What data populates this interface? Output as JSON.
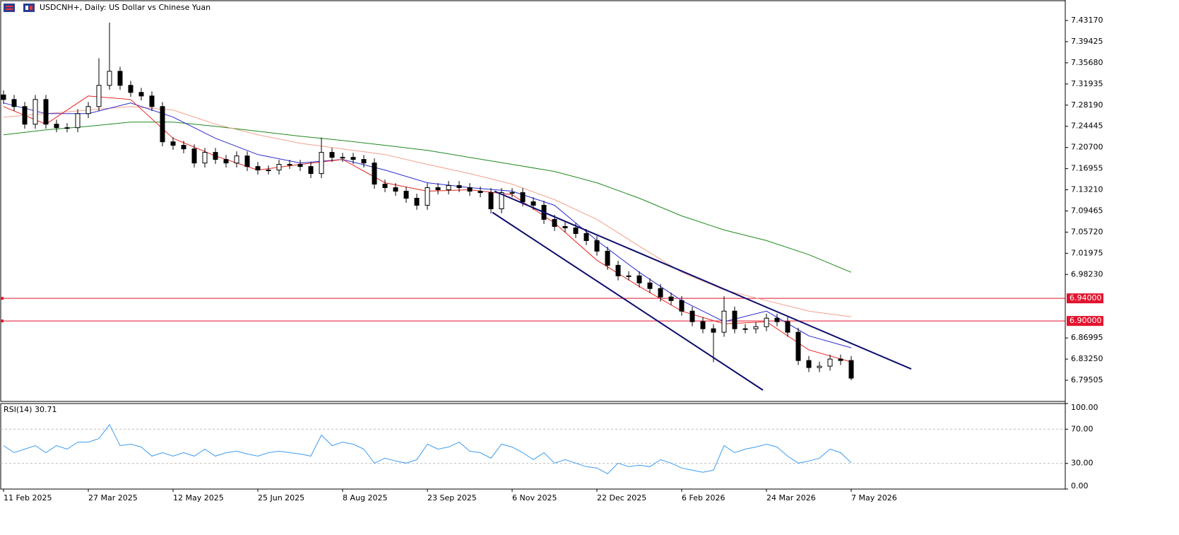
{
  "chart_data": {
    "type": "candlestick",
    "title": "USDCNH+, Daily:  US Dollar vs Chinese Yuan",
    "categories": [
      "11 Feb 2025",
      null,
      null,
      null,
      null,
      null,
      null,
      null,
      "27 Mar 2025",
      null,
      null,
      null,
      null,
      null,
      null,
      null,
      "12 May 2025",
      null,
      null,
      null,
      null,
      null,
      null,
      null,
      "25 Jun 2025",
      null,
      null,
      null,
      null,
      null,
      null,
      null,
      "8 Aug 2025",
      null,
      null,
      null,
      null,
      null,
      null,
      null,
      "23 Sep 2025",
      null,
      null,
      null,
      null,
      null,
      null,
      null,
      "6 Nov 2025",
      null,
      null,
      null,
      null,
      null,
      null,
      null,
      "22 Dec 2025",
      null,
      null,
      null,
      null,
      null,
      null,
      null,
      "6 Feb 2026",
      null,
      null,
      null,
      null,
      null,
      null,
      null,
      "24 Mar 2026",
      null,
      null,
      null,
      null,
      null,
      null,
      null,
      "7 May 2026"
    ],
    "open": [
      7.3,
      7.2919,
      7.2794,
      7.2482,
      7.2919,
      7.2482,
      7.242,
      7.242,
      7.2669,
      7.2794,
      7.3169,
      7.3418,
      7.3169,
      7.3044,
      7.2981,
      7.2794,
      7.217,
      7.2108,
      7.2045,
      7.1795,
      7.1983,
      7.1858,
      7.1795,
      7.192,
      7.1733,
      7.1671,
      7.1671,
      7.1771,
      7.1771,
      7.1733,
      7.1608,
      7.1983,
      7.1895,
      7.1895,
      7.1858,
      7.1795,
      7.1421,
      7.1359,
      7.1296,
      7.1171,
      7.1047,
      7.1359,
      7.1321,
      7.1396,
      7.1359,
      7.1296,
      7.1271,
      7.0984,
      7.1271,
      7.1271,
      7.1109,
      7.1047,
      7.0797,
      7.0672,
      7.0647,
      7.0547,
      7.0422,
      7.0235,
      6.9985,
      6.9798,
      6.9798,
      6.9673,
      6.9574,
      6.9424,
      6.9361,
      6.9174,
      6.8987,
      6.8862,
      6.88,
      6.9174,
      6.8862,
      6.8862,
      6.8899,
      6.9049,
      6.8987,
      6.88,
      6.83,
      6.8175,
      6.82,
      6.8325,
      6.83
    ],
    "high": [
      7.308,
      7.2999,
      7.2874,
      7.2999,
      7.2999,
      7.2562,
      7.25,
      7.2749,
      7.2874,
      7.365,
      7.428,
      7.3498,
      7.3249,
      7.3124,
      7.3061,
      7.2874,
      7.225,
      7.2188,
      7.2125,
      7.2063,
      7.2063,
      7.1938,
      7.2,
      7.2,
      7.1813,
      7.1751,
      7.1851,
      7.1851,
      7.1851,
      7.1813,
      7.2245,
      7.2063,
      7.1975,
      7.1975,
      7.1938,
      7.1875,
      7.1501,
      7.1439,
      7.1376,
      7.1251,
      7.1439,
      7.1439,
      7.1476,
      7.1476,
      7.1439,
      7.1376,
      7.1351,
      7.1351,
      7.1351,
      7.1351,
      7.1189,
      7.1127,
      7.0877,
      7.0752,
      7.0727,
      7.0627,
      7.0502,
      7.0315,
      7.0065,
      6.9878,
      6.9878,
      6.9753,
      6.9654,
      6.9504,
      6.9441,
      6.9254,
      6.9067,
      6.8942,
      6.9436,
      6.9254,
      6.8942,
      6.8979,
      6.9129,
      6.9129,
      6.9067,
      6.888,
      6.838,
      6.828,
      6.8405,
      6.8405,
      6.838
    ],
    "low": [
      7.2839,
      7.2714,
      7.2402,
      7.2402,
      7.2402,
      7.234,
      7.234,
      7.234,
      7.2589,
      7.2714,
      7.3089,
      7.3089,
      7.2964,
      7.2901,
      7.2714,
      7.209,
      7.2028,
      7.1965,
      7.1715,
      7.1715,
      7.1778,
      7.1715,
      7.1715,
      7.1653,
      7.1591,
      7.1591,
      7.1591,
      7.1691,
      7.1653,
      7.1528,
      7.1528,
      7.1815,
      7.1815,
      7.1778,
      7.1715,
      7.1341,
      7.1279,
      7.1216,
      7.1091,
      7.0967,
      7.0967,
      7.1241,
      7.1241,
      7.1279,
      7.1216,
      7.1191,
      7.0904,
      7.0904,
      7.1191,
      7.1029,
      7.0967,
      7.0717,
      7.0592,
      7.0567,
      7.0467,
      7.0342,
      7.0155,
      6.9905,
      6.9718,
      6.9718,
      6.9593,
      6.9494,
      6.9344,
      6.9281,
      6.9094,
      6.8907,
      6.8782,
      6.827,
      6.872,
      6.8782,
      6.8782,
      6.8782,
      6.8819,
      6.8907,
      6.872,
      6.822,
      6.8095,
      6.8095,
      6.812,
      6.822,
      6.795
    ],
    "close": [
      7.2919,
      7.2794,
      7.2482,
      7.2919,
      7.2482,
      7.242,
      7.242,
      7.2669,
      7.2794,
      7.3169,
      7.3418,
      7.3169,
      7.3044,
      7.2981,
      7.2794,
      7.217,
      7.2108,
      7.2045,
      7.1795,
      7.1983,
      7.1858,
      7.1795,
      7.192,
      7.1733,
      7.1671,
      7.1671,
      7.1771,
      7.1771,
      7.1733,
      7.1608,
      7.1983,
      7.1895,
      7.1895,
      7.1858,
      7.1795,
      7.1421,
      7.1359,
      7.1296,
      7.1171,
      7.1047,
      7.1359,
      7.1321,
      7.1396,
      7.1359,
      7.1296,
      7.1271,
      7.0984,
      7.1271,
      7.1271,
      7.1109,
      7.1047,
      7.0797,
      7.0672,
      7.0647,
      7.0547,
      7.0422,
      7.0235,
      6.9985,
      6.9798,
      6.9798,
      6.9673,
      6.9574,
      6.9424,
      6.9361,
      6.9174,
      6.8987,
      6.8862,
      6.88,
      6.9174,
      6.8862,
      6.8862,
      6.8899,
      6.9049,
      6.8987,
      6.88,
      6.83,
      6.8175,
      6.82,
      6.8325,
      6.83,
      6.7988
    ],
    "up_color": "#ffffff",
    "down_color": "#000000",
    "ylim": [
      6.7576,
      7.4667
    ],
    "yticks": [
      {
        "value": 7.4317,
        "label": "7.43170"
      },
      {
        "value": 7.39425,
        "label": "7.39425"
      },
      {
        "value": 7.3568,
        "label": "7.35680"
      },
      {
        "value": 7.31935,
        "label": "7.31935"
      },
      {
        "value": 7.2819,
        "label": "7.28190"
      },
      {
        "value": 7.24445,
        "label": "7.24445"
      },
      {
        "value": 7.207,
        "label": "7.20700"
      },
      {
        "value": 7.16955,
        "label": "7.16955"
      },
      {
        "value": 7.1321,
        "label": "7.13210"
      },
      {
        "value": 7.09465,
        "label": "7.09465"
      },
      {
        "value": 7.0572,
        "label": "7.05720"
      },
      {
        "value": 7.01975,
        "label": "7.01975"
      },
      {
        "value": 6.9823,
        "label": "6.98230"
      },
      {
        "value": 6.86995,
        "label": "6.86995"
      },
      {
        "value": 6.8325,
        "label": "6.83250"
      },
      {
        "value": 6.79505,
        "label": "6.79505"
      }
    ],
    "levels": [
      {
        "value": 6.94,
        "label": "6.94000",
        "color": "#e3132e"
      },
      {
        "value": 6.9,
        "label": "6.90000",
        "color": "#e3132e"
      }
    ],
    "moving_averages": [
      {
        "color": "#1e8a1e",
        "x": [
          0,
          4,
          8,
          12,
          16,
          20,
          24,
          28,
          32,
          36,
          40,
          44,
          48,
          52,
          56,
          60,
          64,
          68,
          72,
          76,
          80
        ],
        "values": [
          7.2295,
          7.2382,
          7.2445,
          7.2519,
          7.2519,
          7.2445,
          7.2357,
          7.227,
          7.2195,
          7.2108,
          7.202,
          7.1895,
          7.1771,
          7.1646,
          7.1446,
          7.1171,
          7.0859,
          7.061,
          7.0422,
          7.0173,
          6.9861
        ]
      },
      {
        "color": "#f4a08c",
        "x": [
          0,
          4,
          8,
          12,
          16,
          20,
          24,
          28,
          32,
          36,
          40,
          44,
          48,
          52,
          56,
          60,
          64,
          68,
          72,
          76,
          80
        ],
        "values": [
          7.2607,
          7.2669,
          7.2732,
          7.2794,
          7.2732,
          7.2482,
          7.2295,
          7.2145,
          7.2045,
          7.1945,
          7.1771,
          7.1608,
          7.1421,
          7.1146,
          7.0797,
          7.0322,
          6.9861,
          6.9549,
          6.9361,
          6.9174,
          6.9074
        ]
      },
      {
        "color": "#2a2ad0",
        "x": [
          0,
          4,
          8,
          12,
          16,
          20,
          24,
          28,
          32,
          36,
          40,
          44,
          48,
          52,
          56,
          60,
          64,
          68,
          72,
          76,
          80
        ],
        "values": [
          7.2857,
          7.2669,
          7.2669,
          7.2857,
          7.2607,
          7.2232,
          7.1945,
          7.1795,
          7.1858,
          7.1671,
          7.1446,
          7.1359,
          7.1296,
          7.1047,
          7.0422,
          6.9861,
          6.9361,
          6.8987,
          6.9174,
          6.8737,
          6.8525
        ]
      },
      {
        "color": "#e8241c",
        "x": [
          0,
          4,
          8,
          12,
          16,
          20,
          24,
          28,
          32,
          36,
          40,
          44,
          48,
          52,
          56,
          60,
          64,
          68,
          72,
          76,
          80
        ],
        "values": [
          7.2794,
          7.2482,
          7.2981,
          7.2919,
          7.2232,
          7.192,
          7.1671,
          7.1771,
          7.1858,
          7.1446,
          7.1296,
          7.1321,
          7.1234,
          7.0734,
          7.0073,
          6.9611,
          6.9174,
          6.8949,
          6.8987,
          6.8488,
          6.8275
        ]
      }
    ],
    "trendlines": [
      {
        "color": "#0c0c6e",
        "x": [
          46.33,
          85.67
        ],
        "values": [
          7.1296,
          6.815
        ]
      },
      {
        "color": "#0c0c6e",
        "x": [
          46.13,
          71.67
        ],
        "values": [
          7.0922,
          6.7776
        ]
      }
    ],
    "rsi": {
      "title": "RSI(14) 30.71",
      "color": "#3d9cf0",
      "values": [
        50.8,
        42.6,
        46.7,
        50.8,
        42.6,
        50.8,
        46.7,
        54.9,
        54.9,
        59.0,
        75.4,
        50.8,
        52.5,
        49.2,
        38.5,
        42.6,
        38.5,
        42.6,
        38.5,
        46.7,
        38.5,
        42.6,
        44.3,
        41.0,
        38.5,
        42.6,
        44.3,
        42.6,
        41.0,
        38.5,
        63.1,
        50.8,
        54.9,
        52.5,
        46.7,
        30.3,
        36.1,
        32.8,
        30.3,
        34.4,
        52.5,
        46.7,
        49.2,
        54.9,
        44.3,
        42.6,
        36.1,
        52.5,
        49.2,
        42.6,
        34.4,
        42.6,
        30.3,
        34.4,
        30.3,
        26.2,
        24.6,
        18.0,
        30.3,
        26.2,
        27.9,
        26.2,
        34.4,
        30.3,
        24.6,
        22.1,
        19.7,
        22.1,
        50.8,
        42.6,
        46.7,
        49.2,
        52.5,
        49.2,
        38.5,
        30.3,
        32.8,
        36.1,
        46.7,
        42.6,
        30.71
      ],
      "ylim": [
        0,
        100
      ],
      "yticks": [
        {
          "value": 100,
          "label": "100.00"
        },
        {
          "value": 70,
          "label": "70.00"
        },
        {
          "value": 30,
          "label": "30.00"
        },
        {
          "value": 0,
          "label": "0.00"
        }
      ]
    }
  }
}
